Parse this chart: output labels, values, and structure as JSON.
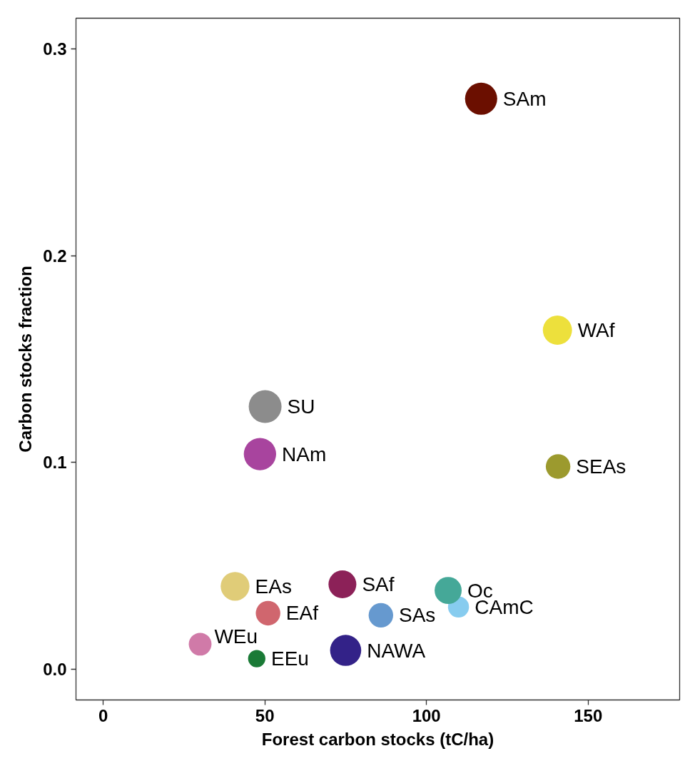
{
  "chart_data": {
    "type": "bubble",
    "xlabel": "Forest carbon stocks (tC/ha)",
    "ylabel": "Carbon stocks fraction",
    "xlim": [
      -8.4,
      178.3
    ],
    "ylim": [
      -0.015,
      0.315
    ],
    "xticks": [
      0,
      50,
      100,
      150
    ],
    "yticks": [
      {
        "value": 0,
        "label": "0.0"
      },
      0.1,
      0.2,
      0.3
    ],
    "grid": false,
    "marker": "circle",
    "series": [
      {
        "name": "SAm",
        "color": "#6b0f00",
        "x": [
          116.9
        ],
        "values": [
          0.276
        ],
        "sizes": [
          0.96
        ]
      },
      {
        "name": "WAf",
        "color": "#ede03c",
        "x": [
          140.5
        ],
        "values": [
          0.164
        ],
        "sizes": [
          0.79
        ]
      },
      {
        "name": "SU",
        "color": "#8c8c8c",
        "x": [
          50.1
        ],
        "values": [
          0.127
        ],
        "sizes": [
          1
        ]
      },
      {
        "name": "NAm",
        "color": "#a8449e",
        "x": [
          48.5
        ],
        "values": [
          0.104
        ],
        "sizes": [
          0.97
        ]
      },
      {
        "name": "SEAs",
        "color": "#9c9a2e",
        "x": [
          140.7
        ],
        "values": [
          0.098
        ],
        "sizes": [
          0.56
        ]
      },
      {
        "name": "EAs",
        "color": "#e0cc78",
        "x": [
          40.8
        ],
        "values": [
          0.04
        ],
        "sizes": [
          0.77
        ]
      },
      {
        "name": "SAf",
        "color": "#8c2158",
        "x": [
          74.0
        ],
        "values": [
          0.041
        ],
        "sizes": [
          0.72
        ]
      },
      {
        "name": "CAmC",
        "color": "#87ccef",
        "x": [
          109.9
        ],
        "values": [
          0.03
        ],
        "sizes": [
          0.41
        ]
      },
      {
        "name": "Oc",
        "color": "#45a898",
        "x": [
          106.7
        ],
        "values": [
          0.038
        ],
        "sizes": [
          0.68
        ]
      },
      {
        "name": "EAf",
        "color": "#d0666e",
        "x": [
          51.0
        ],
        "values": [
          0.027
        ],
        "sizes": [
          0.56
        ]
      },
      {
        "name": "SAs",
        "color": "#6699cf",
        "x": [
          85.9
        ],
        "values": [
          0.026
        ],
        "sizes": [
          0.56
        ]
      },
      {
        "name": "WEu",
        "color": "#d07aa8",
        "x": [
          30.0
        ],
        "values": [
          0.012
        ],
        "sizes": [
          0.48
        ]
      },
      {
        "name": "EEu",
        "color": "#1a7a36",
        "x": [
          47.5
        ],
        "values": [
          0.005
        ],
        "sizes": [
          0.28
        ]
      },
      {
        "name": "NAWA",
        "color": "#332288",
        "x": [
          75.0
        ],
        "values": [
          0.009
        ],
        "sizes": [
          0.9
        ]
      }
    ]
  }
}
